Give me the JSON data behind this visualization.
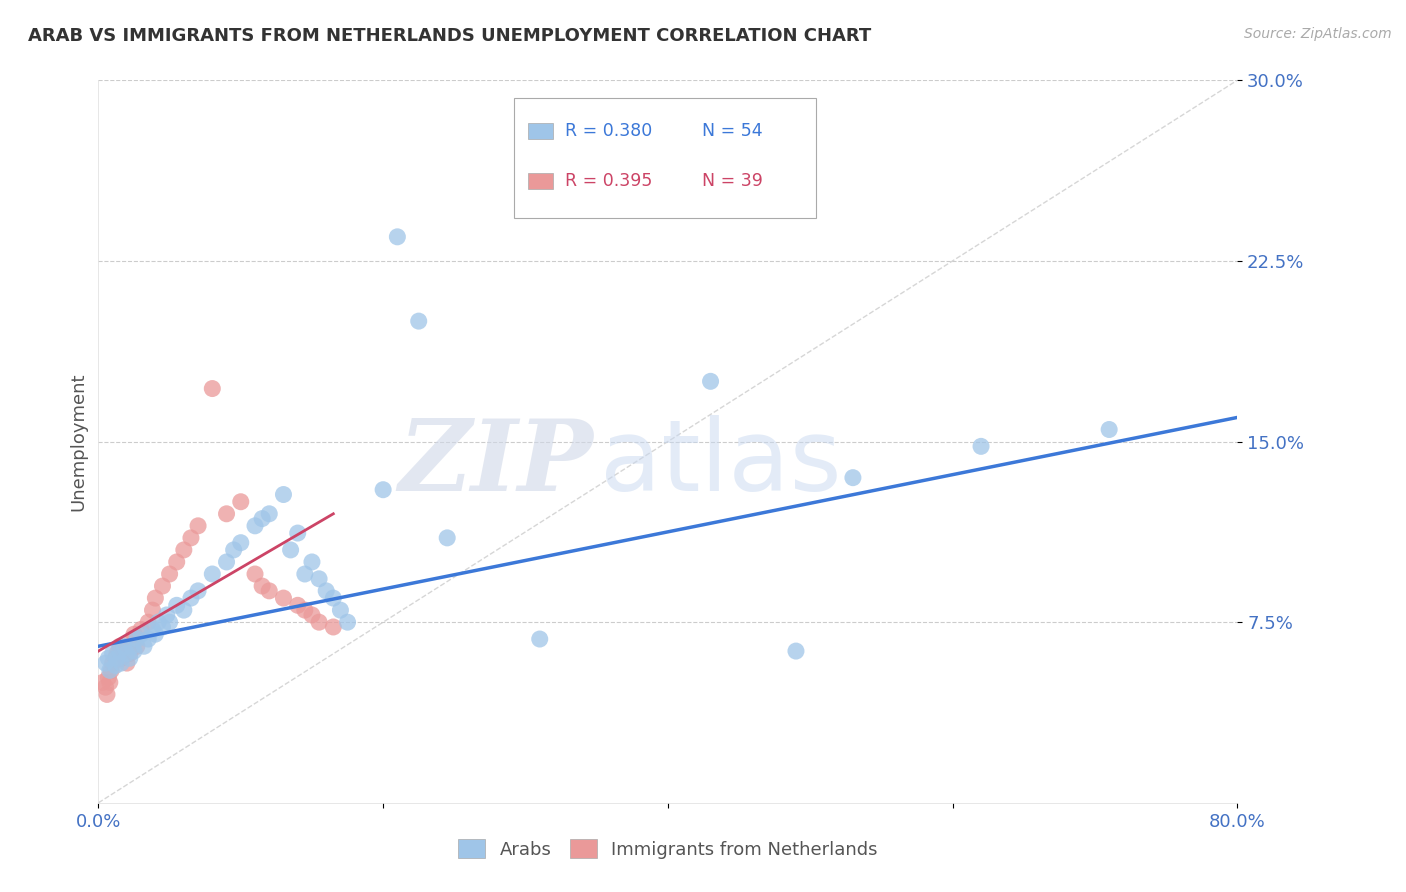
{
  "title": "ARAB VS IMMIGRANTS FROM NETHERLANDS UNEMPLOYMENT CORRELATION CHART",
  "source": "Source: ZipAtlas.com",
  "ylabel": "Unemployment",
  "xlim": [
    0.0,
    0.8
  ],
  "ylim": [
    0.0,
    0.3
  ],
  "yticks": [
    0.075,
    0.15,
    0.225,
    0.3
  ],
  "ytick_labels": [
    "7.5%",
    "15.0%",
    "22.5%",
    "30.0%"
  ],
  "arab_color": "#9fc5e8",
  "netherlands_color": "#ea9999",
  "arab_line_color": "#3c78d8",
  "netherlands_line_color": "#cc4466",
  "arab_R": 0.38,
  "arab_N": 54,
  "netherlands_R": 0.395,
  "netherlands_N": 39,
  "background_color": "#ffffff",
  "grid_color": "#cccccc",
  "axis_label_color": "#4472c4",
  "arab_scatter_x": [
    0.005,
    0.007,
    0.008,
    0.01,
    0.012,
    0.013,
    0.015,
    0.016,
    0.018,
    0.02,
    0.022,
    0.024,
    0.025,
    0.027,
    0.03,
    0.032,
    0.035,
    0.038,
    0.04,
    0.042,
    0.045,
    0.048,
    0.05,
    0.055,
    0.06,
    0.065,
    0.07,
    0.08,
    0.09,
    0.095,
    0.1,
    0.11,
    0.115,
    0.12,
    0.13,
    0.135,
    0.14,
    0.145,
    0.15,
    0.155,
    0.16,
    0.165,
    0.17,
    0.175,
    0.2,
    0.21,
    0.225,
    0.245,
    0.31,
    0.43,
    0.49,
    0.53,
    0.62,
    0.71
  ],
  "arab_scatter_y": [
    0.058,
    0.06,
    0.055,
    0.062,
    0.057,
    0.06,
    0.063,
    0.058,
    0.065,
    0.062,
    0.06,
    0.065,
    0.063,
    0.068,
    0.07,
    0.065,
    0.068,
    0.072,
    0.07,
    0.075,
    0.073,
    0.078,
    0.075,
    0.082,
    0.08,
    0.085,
    0.088,
    0.095,
    0.1,
    0.105,
    0.108,
    0.115,
    0.118,
    0.12,
    0.128,
    0.105,
    0.112,
    0.095,
    0.1,
    0.093,
    0.088,
    0.085,
    0.08,
    0.075,
    0.13,
    0.235,
    0.2,
    0.11,
    0.068,
    0.175,
    0.063,
    0.135,
    0.148,
    0.155
  ],
  "netherlands_scatter_x": [
    0.003,
    0.005,
    0.006,
    0.007,
    0.008,
    0.009,
    0.01,
    0.012,
    0.013,
    0.015,
    0.016,
    0.018,
    0.02,
    0.022,
    0.024,
    0.025,
    0.027,
    0.03,
    0.035,
    0.038,
    0.04,
    0.045,
    0.05,
    0.055,
    0.06,
    0.065,
    0.07,
    0.08,
    0.09,
    0.1,
    0.11,
    0.115,
    0.12,
    0.13,
    0.14,
    0.145,
    0.15,
    0.155,
    0.165
  ],
  "netherlands_scatter_y": [
    0.05,
    0.048,
    0.045,
    0.052,
    0.05,
    0.055,
    0.058,
    0.06,
    0.062,
    0.065,
    0.06,
    0.063,
    0.058,
    0.062,
    0.068,
    0.07,
    0.065,
    0.072,
    0.075,
    0.08,
    0.085,
    0.09,
    0.095,
    0.1,
    0.105,
    0.11,
    0.115,
    0.172,
    0.12,
    0.125,
    0.095,
    0.09,
    0.088,
    0.085,
    0.082,
    0.08,
    0.078,
    0.075,
    0.073
  ],
  "watermark_zip": "ZIP",
  "watermark_atlas": "atlas",
  "legend_arab_label": "Arabs",
  "legend_netherlands_label": "Immigrants from Netherlands",
  "arab_regline_x": [
    0.0,
    0.8
  ],
  "arab_regline_y": [
    0.065,
    0.16
  ],
  "neth_regline_x": [
    0.0,
    0.165
  ],
  "neth_regline_y": [
    0.063,
    0.12
  ]
}
